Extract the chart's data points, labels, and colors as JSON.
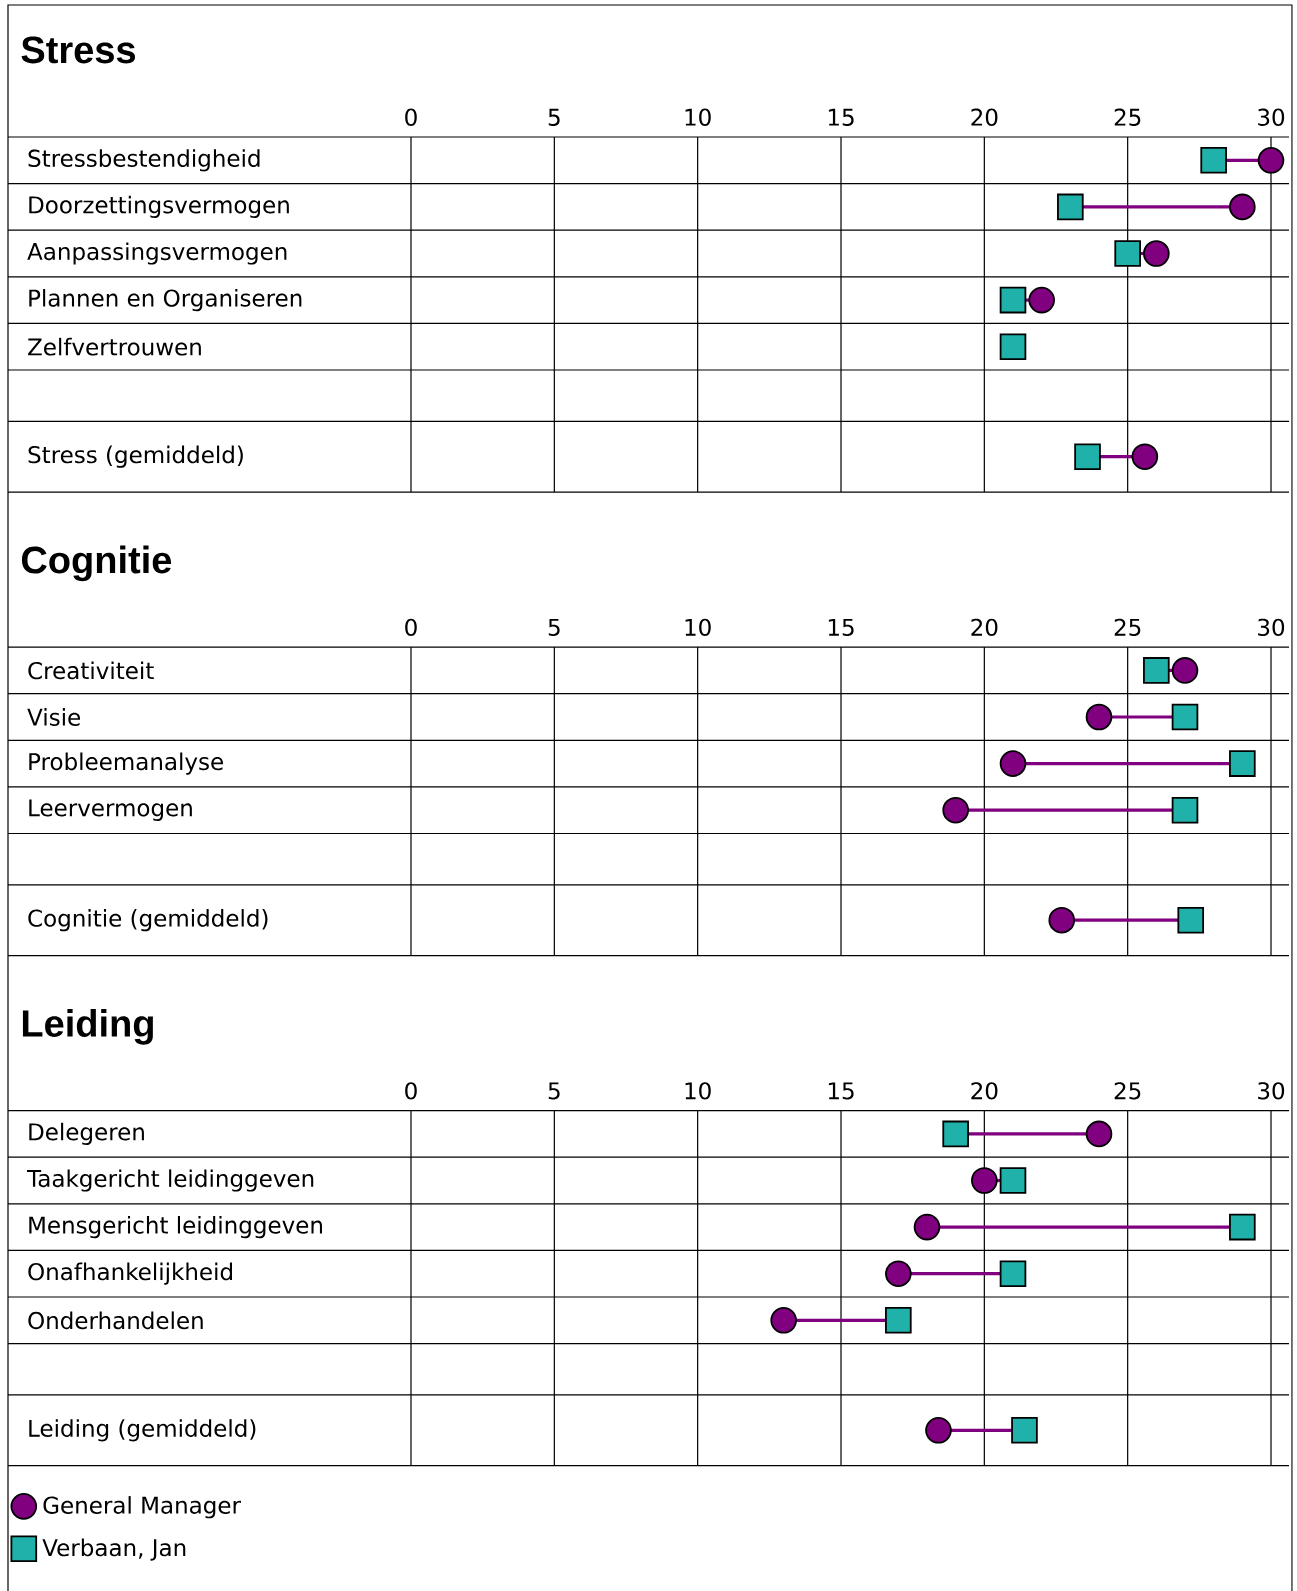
{
  "chart_data": [
    {
      "type": "scatter",
      "orientation": "horizontal",
      "title": "Stress",
      "categories": [
        "Stressbestendigheid",
        "Doorzettingsvermogen",
        "Aanpassingsvermogen",
        "Plannen en Organiseren",
        "Zelfvertrouwen",
        null,
        "Stress (gemiddeld)"
      ],
      "xlim": [
        0,
        30
      ],
      "xticks": [
        0,
        5,
        10,
        15,
        20,
        25,
        30
      ],
      "grid": "x",
      "legend": false,
      "series": [
        {
          "color": "#800080",
          "marker": "circle",
          "values": [
            30,
            29,
            26,
            22,
            null,
            null,
            25.6
          ]
        },
        {
          "color": "#20b2aa",
          "marker": "square",
          "values": [
            28,
            23,
            25,
            21,
            21,
            null,
            23.6
          ]
        }
      ]
    },
    {
      "type": "scatter",
      "orientation": "horizontal",
      "title": "Cognitie",
      "categories": [
        "Creativiteit",
        "Visie",
        "Probleemanalyse",
        "Leervermogen",
        null,
        "Cognitie (gemiddeld)"
      ],
      "xlim": [
        0,
        30
      ],
      "xticks": [
        0,
        5,
        10,
        15,
        20,
        25,
        30
      ],
      "grid": "x",
      "legend": false,
      "series": [
        {
          "color": "#800080",
          "marker": "circle",
          "values": [
            27,
            24,
            21,
            19,
            null,
            22.7
          ]
        },
        {
          "color": "#20b2aa",
          "marker": "square",
          "values": [
            26,
            27,
            29,
            27,
            null,
            27.2
          ]
        }
      ]
    },
    {
      "type": "scatter",
      "orientation": "horizontal",
      "title": "Leiding",
      "categories": [
        "Delegeren",
        "Taakgericht leidinggeven",
        "Mensgericht leidinggeven",
        "Onafhankelijkheid",
        "Onderhandelen",
        null,
        "Leiding (gemiddeld)"
      ],
      "xlim": [
        0,
        30
      ],
      "xticks": [
        0,
        5,
        10,
        15,
        20,
        25,
        30
      ],
      "grid": "x",
      "legend": "bottom",
      "series": [
        {
          "name": "General Manager",
          "color": "#800080",
          "marker": "circle",
          "values": [
            24,
            20,
            18,
            17,
            13,
            null,
            18.4
          ]
        },
        {
          "name": "Verbaan, Jan",
          "color": "#20b2aa",
          "marker": "square",
          "values": [
            19,
            21,
            29,
            21,
            17,
            null,
            21.4
          ]
        }
      ]
    }
  ]
}
